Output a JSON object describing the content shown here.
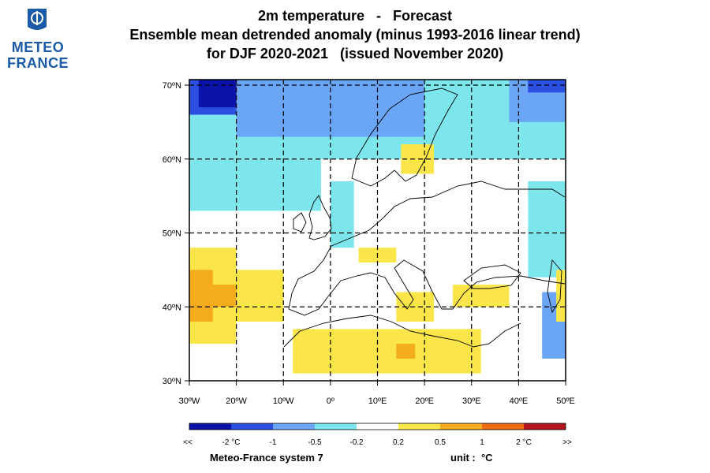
{
  "logo": {
    "line1": "METEO",
    "line2": "FRANCE",
    "color": "#1a5aa6"
  },
  "title": {
    "line1": "2m temperature   -   Forecast",
    "line2": "Ensemble mean detrended anomaly (minus 1993-2016 linear trend)",
    "line3": "for DJF 2020-2021   (issued November 2020)"
  },
  "map": {
    "lon_range": [
      -30,
      50
    ],
    "lat_range": [
      30,
      72
    ],
    "lon_ticks": [
      {
        "value": -30,
        "label": "30ºW"
      },
      {
        "value": -20,
        "label": "20ºW"
      },
      {
        "value": -10,
        "label": "10ºW"
      },
      {
        "value": 0,
        "label": "0º"
      },
      {
        "value": 10,
        "label": "10ºE"
      },
      {
        "value": 20,
        "label": "20ºE"
      },
      {
        "value": 30,
        "label": "30ºE"
      },
      {
        "value": 40,
        "label": "40ºE"
      },
      {
        "value": 50,
        "label": "50ºE"
      }
    ],
    "lat_ticks": [
      {
        "value": 30,
        "label": "30ºN"
      },
      {
        "value": 40,
        "label": "40ºN"
      },
      {
        "value": 50,
        "label": "50ºN"
      },
      {
        "value": 60,
        "label": "60ºN"
      },
      {
        "value": 70,
        "label": "70ºN"
      }
    ],
    "gridlines": "dashed",
    "anomaly_regions": [
      {
        "level": "anom_-0.5_-0.2",
        "lon": [
          -30,
          50
        ],
        "lat": [
          60,
          71
        ]
      },
      {
        "level": "anom_-0.5_-0.2",
        "lon": [
          -30,
          -2
        ],
        "lat": [
          53,
          60
        ]
      },
      {
        "level": "anom_-0.5_-0.2",
        "lon": [
          0,
          5
        ],
        "lat": [
          48,
          57
        ]
      },
      {
        "level": "anom_-0.5_-0.2",
        "lon": [
          42,
          50
        ],
        "lat": [
          44,
          57
        ]
      },
      {
        "level": "anom_-1_-0.5",
        "lon": [
          -20,
          20
        ],
        "lat": [
          63,
          71
        ]
      },
      {
        "level": "anom_-1_-0.5",
        "lon": [
          38,
          50
        ],
        "lat": [
          65,
          71
        ]
      },
      {
        "level": "anom_-1_-0.5",
        "lon": [
          45,
          50
        ],
        "lat": [
          33,
          42
        ]
      },
      {
        "level": "anom_-2_-1",
        "lon": [
          -30,
          -20
        ],
        "lat": [
          66,
          71
        ]
      },
      {
        "level": "anom_-2_-1",
        "lon": [
          42,
          50
        ],
        "lat": [
          69,
          71
        ]
      },
      {
        "level": "anom_below_-2",
        "lon": [
          -28,
          -20
        ],
        "lat": [
          67,
          71
        ]
      },
      {
        "level": "anom_0.2_0.5",
        "lon": [
          -30,
          -20
        ],
        "lat": [
          35,
          48
        ]
      },
      {
        "level": "anom_0.2_0.5",
        "lon": [
          -22,
          -10
        ],
        "lat": [
          38,
          45
        ]
      },
      {
        "level": "anom_0.2_0.5",
        "lon": [
          -8,
          32
        ],
        "lat": [
          31,
          37
        ]
      },
      {
        "level": "anom_0.2_0.5",
        "lon": [
          14,
          22
        ],
        "lat": [
          38,
          42
        ]
      },
      {
        "level": "anom_0.2_0.5",
        "lon": [
          26,
          38
        ],
        "lat": [
          40,
          43
        ]
      },
      {
        "level": "anom_0.2_0.5",
        "lon": [
          6,
          14
        ],
        "lat": [
          46,
          48
        ]
      },
      {
        "level": "anom_0.2_0.5",
        "lon": [
          15,
          22
        ],
        "lat": [
          58,
          62
        ]
      },
      {
        "level": "anom_0.2_0.5",
        "lon": [
          48,
          50
        ],
        "lat": [
          38,
          45
        ]
      },
      {
        "level": "anom_0.5_1",
        "lon": [
          -30,
          -25
        ],
        "lat": [
          38,
          45
        ]
      },
      {
        "level": "anom_0.5_1",
        "lon": [
          -25,
          -20
        ],
        "lat": [
          40,
          43
        ]
      },
      {
        "level": "anom_0.5_1",
        "lon": [
          14,
          18
        ],
        "lat": [
          33,
          35
        ]
      }
    ]
  },
  "legend": {
    "levels": [
      {
        "key": "anom_below_-2",
        "color": "#0a12a8"
      },
      {
        "key": "anom_-2_-1",
        "color": "#2b4fe0"
      },
      {
        "key": "anom_-1_-0.5",
        "color": "#6aa6f5"
      },
      {
        "key": "anom_-0.5_-0.2",
        "color": "#7de6ec"
      },
      {
        "key": "anom_-0.2_0.2",
        "color": "#ffffff"
      },
      {
        "key": "anom_0.2_0.5",
        "color": "#fbe64a"
      },
      {
        "key": "anom_0.5_1",
        "color": "#f5ac1c"
      },
      {
        "key": "anom_1_2",
        "color": "#f06a12"
      },
      {
        "key": "anom_above_2",
        "color": "#b4141c"
      }
    ],
    "labels": [
      "<<",
      "-2 °C",
      "-1",
      "-0.5",
      "-0.2",
      "0.2",
      "0.5",
      "1",
      "2 °C",
      ">>"
    ]
  },
  "footer": {
    "system": "Meteo-France system 7",
    "unit": "unit :  °C"
  }
}
